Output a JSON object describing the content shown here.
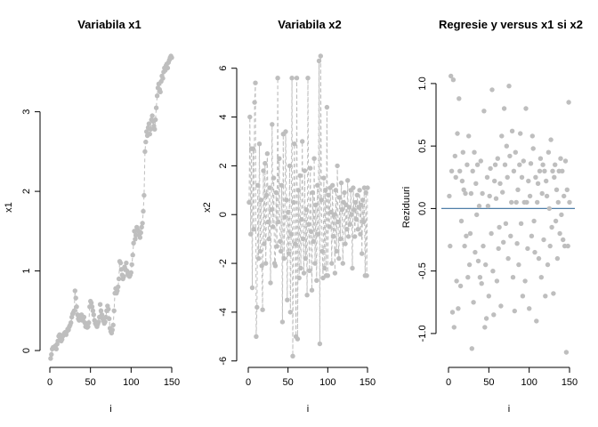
{
  "colors": {
    "points": "#bebebe",
    "reference_line": "#4f7fa8",
    "axis": "#000000"
  },
  "chart_data": [
    {
      "type": "line",
      "title": "Variabila x1",
      "xlabel": "i",
      "ylabel": "x1",
      "xlim": [
        0,
        150
      ],
      "ylim": [
        -0.1,
        3.7
      ],
      "x_ticks": [
        0,
        50,
        100,
        150
      ],
      "y_ticks": [
        0,
        1,
        2,
        3
      ],
      "markers": true,
      "line_style": "dashed",
      "grid": false,
      "x": [
        1,
        2,
        3,
        4,
        5,
        6,
        7,
        8,
        9,
        10,
        11,
        12,
        13,
        14,
        15,
        16,
        17,
        18,
        19,
        20,
        21,
        22,
        23,
        24,
        25,
        26,
        27,
        28,
        29,
        30,
        31,
        32,
        33,
        34,
        35,
        36,
        37,
        38,
        39,
        40,
        41,
        42,
        43,
        44,
        45,
        46,
        47,
        48,
        49,
        50,
        51,
        52,
        53,
        54,
        55,
        56,
        57,
        58,
        59,
        60,
        61,
        62,
        63,
        64,
        65,
        66,
        67,
        68,
        69,
        70,
        71,
        72,
        73,
        74,
        75,
        76,
        77,
        78,
        79,
        80,
        81,
        82,
        83,
        84,
        85,
        86,
        87,
        88,
        89,
        90,
        91,
        92,
        93,
        94,
        95,
        96,
        97,
        98,
        99,
        100,
        101,
        102,
        103,
        104,
        105,
        106,
        107,
        108,
        109,
        110,
        111,
        112,
        113,
        114,
        115,
        116,
        117,
        118,
        119,
        120,
        121,
        122,
        123,
        124,
        125,
        126,
        127,
        128,
        129,
        130,
        131,
        132,
        133,
        134,
        135,
        136,
        137,
        138,
        139,
        140,
        141,
        142,
        143,
        144,
        145,
        146,
        147,
        148,
        149,
        150
      ],
      "y": [
        -0.1,
        -0.05,
        0.02,
        0.04,
        0.03,
        0.05,
        0.06,
        0.02,
        0.08,
        0.12,
        0.18,
        0.2,
        0.15,
        0.12,
        0.14,
        0.18,
        0.2,
        0.22,
        0.23,
        0.2,
        0.24,
        0.27,
        0.26,
        0.3,
        0.32,
        0.35,
        0.42,
        0.46,
        0.48,
        0.5,
        0.75,
        0.66,
        0.55,
        0.45,
        0.4,
        0.38,
        0.44,
        0.42,
        0.45,
        0.38,
        0.4,
        0.42,
        0.35,
        0.3,
        0.33,
        0.29,
        0.3,
        0.35,
        0.55,
        0.62,
        0.6,
        0.55,
        0.5,
        0.45,
        0.38,
        0.34,
        0.32,
        0.3,
        0.33,
        0.36,
        0.42,
        0.58,
        0.5,
        0.45,
        0.4,
        0.37,
        0.34,
        0.36,
        0.42,
        0.5,
        0.56,
        0.52,
        0.4,
        0.28,
        0.24,
        0.22,
        0.26,
        0.32,
        0.5,
        0.72,
        0.78,
        0.72,
        0.75,
        0.8,
        0.9,
        1.12,
        1.1,
        1.02,
        0.95,
        0.9,
        0.93,
        1.05,
        1.02,
        1.1,
        1.0,
        0.96,
        0.94,
        0.93,
        0.95,
        0.98,
        1.08,
        1.2,
        1.35,
        1.5,
        1.4,
        1.45,
        1.55,
        1.52,
        1.5,
        1.45,
        1.42,
        1.48,
        1.55,
        1.6,
        1.75,
        1.95,
        2.5,
        2.62,
        2.75,
        2.7,
        2.8,
        2.85,
        2.72,
        2.78,
        2.9,
        2.95,
        2.88,
        2.82,
        2.78,
        2.9,
        3.05,
        3.2,
        3.3,
        3.35,
        3.28,
        3.25,
        3.38,
        3.45,
        3.42,
        3.5,
        3.55,
        3.52,
        3.58,
        3.6,
        3.55,
        3.62,
        3.65,
        3.68,
        3.7,
        3.68
      ]
    },
    {
      "type": "line",
      "title": "Variabila x2",
      "xlabel": "i",
      "ylabel": "x2",
      "xlim": [
        0,
        150
      ],
      "ylim": [
        -5.9,
        6.5
      ],
      "x_ticks": [
        0,
        50,
        100,
        150
      ],
      "y_ticks": [
        -6,
        -4,
        -2,
        0,
        2,
        4,
        6
      ],
      "markers": true,
      "line_style": "dashed",
      "grid": false,
      "x": [
        1,
        2,
        3,
        4,
        5,
        6,
        7,
        8,
        9,
        10,
        11,
        12,
        13,
        14,
        15,
        16,
        17,
        18,
        19,
        20,
        21,
        22,
        23,
        24,
        25,
        26,
        27,
        28,
        29,
        30,
        31,
        32,
        33,
        34,
        35,
        36,
        37,
        38,
        39,
        40,
        41,
        42,
        43,
        44,
        45,
        46,
        47,
        48,
        49,
        50,
        51,
        52,
        53,
        54,
        55,
        56,
        57,
        58,
        59,
        60,
        61,
        62,
        63,
        64,
        65,
        66,
        67,
        68,
        69,
        70,
        71,
        72,
        73,
        74,
        75,
        76,
        77,
        78,
        79,
        80,
        81,
        82,
        83,
        84,
        85,
        86,
        87,
        88,
        89,
        90,
        91,
        92,
        93,
        94,
        95,
        96,
        97,
        98,
        99,
        100,
        101,
        102,
        103,
        104,
        105,
        106,
        107,
        108,
        109,
        110,
        111,
        112,
        113,
        114,
        115,
        116,
        117,
        118,
        119,
        120,
        121,
        122,
        123,
        124,
        125,
        126,
        127,
        128,
        129,
        130,
        131,
        132,
        133,
        134,
        135,
        136,
        137,
        138,
        139,
        140,
        141,
        142,
        143,
        144,
        145,
        146,
        147,
        148,
        149,
        150
      ],
      "y": [
        0.5,
        4.0,
        -0.8,
        2.7,
        -3.0,
        2.7,
        -0.6,
        4.6,
        5.4,
        -5.0,
        -3.8,
        1.2,
        -1.8,
        2.9,
        -1.5,
        0.6,
        -2.1,
        -3.9,
        1.8,
        -1.2,
        2.1,
        -2.0,
        0.8,
        2.5,
        -0.3,
        -1.0,
        1.1,
        -2.8,
        0.2,
        3.7,
        -0.5,
        1.5,
        -2.0,
        -2.1,
        0.9,
        -1.3,
        5.6,
        -0.3,
        2.3,
        -1.1,
        -1.5,
        1.2,
        -4.4,
        3.3,
        -1.8,
        -0.1,
        3.4,
        0.6,
        -3.5,
        0.1,
        -1.6,
        2.0,
        -4.0,
        -0.8,
        5.6,
        -5.8,
        0.5,
        2.9,
        -1.2,
        -5.0,
        5.6,
        -5.1,
        1.0,
        -2.6,
        1.6,
        -2.2,
        -0.2,
        3.0,
        -1.0,
        -2.4,
        1.8,
        -1.8,
        0.2,
        -3.3,
        5.6,
        -0.4,
        -2.3,
        1.9,
        -0.7,
        -3.1,
        0.9,
        -1.1,
        2.3,
        -2.0,
        0.4,
        -2.7,
        1.2,
        -0.8,
        6.3,
        -5.3,
        6.5,
        0.6,
        -1.5,
        -2.6,
        1.5,
        -2.2,
        1.0,
        -2.5,
        4.4,
        -2.5,
        0.8,
        -0.5,
        1.1,
        0.1,
        -2.0,
        1.2,
        -0.9,
        0.0,
        -2.4,
        1.0,
        -1.5,
        2.0,
        -0.3,
        -1.8,
        0.7,
        -1.0,
        1.3,
        0.2,
        -2.0,
        0.5,
        0.9,
        -1.2,
        0.4,
        -0.6,
        1.4,
        -0.9,
        0.3,
        -0.4,
        1.0,
        0.0,
        -2.2,
        1.1,
        0.2,
        -0.9,
        0.5,
        -0.2,
        0.8,
        -0.6,
        0.3,
        1.0,
        -0.8,
        0.4,
        -1.6,
        0.6,
        -0.3,
        1.1,
        -2.5,
        0.9,
        -2.5,
        1.1
      ]
    },
    {
      "type": "scatter",
      "title": "Regresie y versus x1 si x2",
      "xlabel": "i",
      "ylabel": "Reziduuri",
      "xlim": [
        0,
        150
      ],
      "ylim": [
        -1.2,
        1.22
      ],
      "x_ticks": [
        0,
        50,
        100,
        150
      ],
      "y_ticks": [
        -1.0,
        -0.5,
        0.0,
        0.5,
        1.0
      ],
      "y_tick_labels": [
        "-1.0",
        "-0.5",
        "0.0",
        "0.5",
        "1.0"
      ],
      "reference_line_y": 0,
      "grid": false,
      "x": [
        1,
        2,
        3,
        4,
        5,
        6,
        7,
        8,
        9,
        10,
        11,
        12,
        13,
        14,
        15,
        16,
        17,
        18,
        19,
        20,
        21,
        22,
        23,
        24,
        25,
        26,
        27,
        28,
        29,
        30,
        31,
        32,
        33,
        34,
        35,
        36,
        37,
        38,
        39,
        40,
        41,
        42,
        43,
        44,
        45,
        46,
        47,
        48,
        49,
        50,
        51,
        52,
        53,
        54,
        55,
        56,
        57,
        58,
        59,
        60,
        61,
        62,
        63,
        64,
        65,
        66,
        67,
        68,
        69,
        70,
        71,
        72,
        73,
        74,
        75,
        76,
        77,
        78,
        79,
        80,
        81,
        82,
        83,
        84,
        85,
        86,
        87,
        88,
        89,
        90,
        91,
        92,
        93,
        94,
        95,
        96,
        97,
        98,
        99,
        100,
        101,
        102,
        103,
        104,
        105,
        106,
        107,
        108,
        109,
        110,
        111,
        112,
        113,
        114,
        115,
        116,
        117,
        118,
        119,
        120,
        121,
        122,
        123,
        124,
        125,
        126,
        127,
        128,
        129,
        130,
        131,
        132,
        133,
        134,
        135,
        136,
        137,
        138,
        139,
        140,
        141,
        142,
        143,
        144,
        145,
        146,
        147,
        148,
        149,
        150
      ],
      "y": [
        0.1,
        -0.3,
        1.06,
        0.3,
        -0.83,
        1.03,
        -0.95,
        0.42,
        0.25,
        -0.58,
        0.6,
        -0.8,
        0.88,
        0.3,
        -0.62,
        -0.1,
        0.22,
        0.45,
        0.15,
        -0.3,
        0.12,
        -0.22,
        0.35,
        -0.55,
        0.58,
        -0.45,
        -0.2,
        0.12,
        -1.12,
        0.3,
        -0.75,
        0.45,
        -0.35,
        0.2,
        -0.05,
        0.35,
        -0.42,
        0.02,
        -0.55,
        0.38,
        -0.6,
        0.12,
        -0.3,
        0.78,
        -0.95,
        -0.45,
        -0.88,
        0.25,
        0.02,
        -0.7,
        0.1,
        0.32,
        -0.2,
        0.95,
        -0.5,
        -0.85,
        0.22,
        0.35,
        0.08,
        -0.58,
        0.4,
        -0.32,
        -0.15,
        0.2,
        -0.78,
        0.58,
        0.13,
        -0.27,
        0.8,
        0.35,
        -0.12,
        0.5,
        0.25,
        -0.4,
        0.98,
        0.42,
        -0.22,
        0.05,
        0.62,
        -0.55,
        0.3,
        -0.82,
        0.45,
        0.05,
        -0.28,
        0.15,
        -0.45,
        0.35,
        0.6,
        -0.12,
        0.25,
        -0.7,
        0.38,
        0.05,
        -0.58,
        0.8,
        0.05,
        -0.32,
        0.22,
        -0.8,
        0.1,
        0.36,
        -0.22,
        0.58,
        0.48,
        -0.1,
        -0.35,
        0.25,
        -0.9,
        0.05,
        0.2,
        -0.4,
        0.3,
        0.4,
        -0.55,
        0.12,
        0.35,
        -0.25,
        0.3,
        -0.7,
        0.22,
        0.1,
        -0.45,
        0.45,
        0.0,
        -0.3,
        0.55,
        -0.15,
        0.3,
        -0.68,
        0.25,
        0.35,
        -0.1,
        0.15,
        -0.4,
        0.05,
        0.3,
        -0.2,
        0.4,
        -0.05,
        0.3,
        -0.25,
        0.1,
        -0.3,
        0.38,
        -1.15,
        0.15,
        -0.3,
        0.85,
        0.05
      ]
    }
  ]
}
